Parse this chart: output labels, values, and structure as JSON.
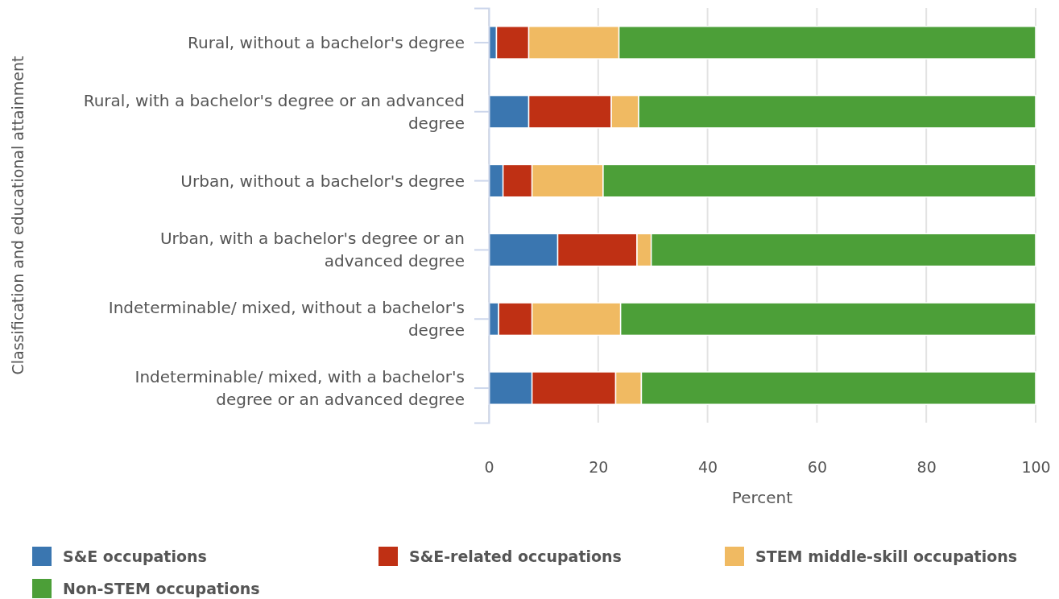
{
  "chart_data": {
    "type": "bar",
    "orientation": "horizontal",
    "stacked": true,
    "ylabel": "Classification and educational attainment",
    "xlabel": "Percent",
    "categories": [
      "Rural, without a bachelor's degree",
      "Rural, with a bachelor's degree or an advanced degree",
      "Urban, without a bachelor's degree",
      "Urban, with a bachelor's degree or an advanced degree",
      "Indeterminable/ mixed, without a bachelor's degree",
      "Indeterminable/ mixed, with a bachelor's degree or an advanced degree"
    ],
    "series": [
      {
        "name": "S&E occupations",
        "color": "#3a76b0",
        "values": [
          1.4,
          7.3,
          2.6,
          12.6,
          1.8,
          7.9
        ]
      },
      {
        "name": "S&E-related occupations",
        "color": "#bf3014",
        "values": [
          5.9,
          15.1,
          5.3,
          14.5,
          6.1,
          15.3
        ]
      },
      {
        "name": "STEM middle-skill occupations",
        "color": "#f0ba62",
        "values": [
          16.5,
          5.0,
          13.0,
          2.6,
          16.2,
          4.7
        ]
      },
      {
        "name": "Non-STEM occupations",
        "color": "#4c9f38",
        "values": [
          76.2,
          72.6,
          79.1,
          70.3,
          75.9,
          72.1
        ]
      }
    ],
    "xlim": [
      0,
      100
    ],
    "xticks": [
      0,
      20,
      40,
      60,
      80,
      100
    ],
    "grid": "x",
    "legend": "bottom"
  }
}
